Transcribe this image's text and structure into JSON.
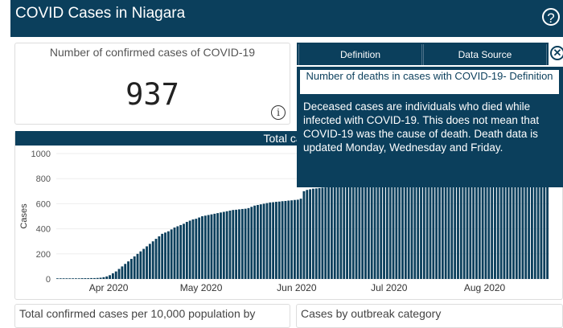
{
  "header": {
    "title": "COVID Cases in Niagara",
    "help_icon": "?"
  },
  "kpi_confirmed": {
    "title": "Number of confirmed cases of COVID-19",
    "value": "937",
    "info_icon": "i"
  },
  "popup": {
    "tabs": [
      "Definition",
      "Data Source"
    ],
    "title": "Number of deaths in cases with COVID-19- Definition",
    "body": "Deceased cases are individuals who died while infected with COVID-19. This does not mean that COVID-19 was the cause of death. Death data is updated Monday, Wednesday and Friday."
  },
  "chart_header": "Total case",
  "bottom": {
    "left_title": "Total confirmed cases per 10,000 population by",
    "right_title": "Cases by outbreak category"
  },
  "chart_data": {
    "type": "bar",
    "ylabel": "Cases",
    "ylim": [
      0,
      1000
    ],
    "yticks": [
      0,
      200,
      400,
      600,
      800,
      1000
    ],
    "x_tick_labels": [
      "Apr 2020",
      "May 2020",
      "Jun 2020",
      "Jul 2020",
      "Aug 2020"
    ],
    "x_tick_day_index": [
      17,
      47,
      78,
      108,
      139
    ],
    "bar_color": "#0b3f5c",
    "values": [
      5,
      5,
      5,
      5,
      5,
      5,
      5,
      5,
      6,
      6,
      6,
      7,
      7,
      8,
      10,
      14,
      20,
      30,
      45,
      60,
      80,
      100,
      120,
      140,
      160,
      180,
      200,
      220,
      240,
      260,
      280,
      300,
      320,
      340,
      360,
      370,
      380,
      395,
      410,
      420,
      430,
      440,
      455,
      465,
      475,
      480,
      490,
      500,
      505,
      510,
      515,
      520,
      525,
      530,
      535,
      540,
      545,
      550,
      552,
      555,
      558,
      560,
      565,
      575,
      585,
      590,
      595,
      600,
      605,
      610,
      612,
      615,
      617,
      620,
      622,
      625,
      627,
      630,
      632,
      640,
      700,
      710,
      715,
      720,
      722,
      725,
      728,
      730,
      733,
      735,
      738,
      740,
      742,
      745,
      748,
      750,
      752,
      755,
      758,
      760,
      762,
      765,
      767,
      770,
      772,
      775,
      778,
      780,
      782,
      785,
      788,
      790,
      792,
      795,
      798,
      800,
      802,
      805,
      808,
      810,
      815,
      820,
      825,
      830,
      835,
      840,
      845,
      850,
      855,
      860,
      865,
      870,
      872,
      875,
      878,
      880,
      885,
      890,
      895,
      900,
      905,
      908,
      910,
      912,
      915,
      918,
      920,
      922,
      924,
      926,
      928,
      929,
      930,
      931,
      932,
      933,
      934,
      935,
      936,
      937
    ]
  }
}
